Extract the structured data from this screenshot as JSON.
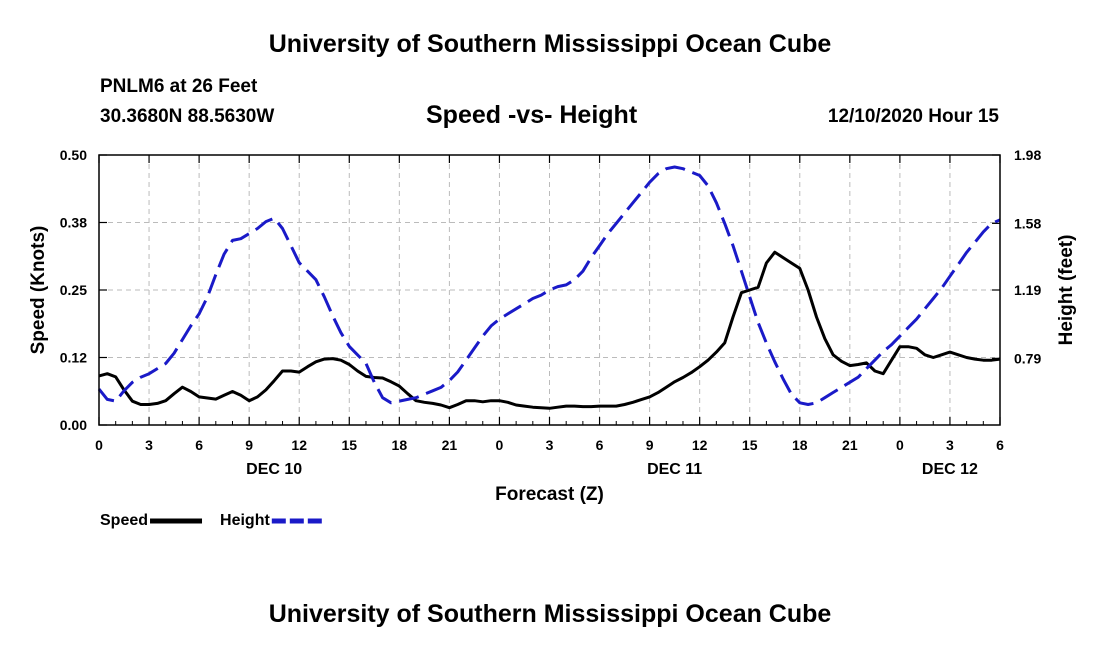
{
  "header": {
    "title": "University of Southern Mississippi Ocean Cube",
    "station": "PNLM6 at 26 Feet",
    "coords": "30.3680N 88.5630W",
    "datetime": "12/10/2020 Hour 15"
  },
  "footer": {
    "title": "University of Southern Mississippi Ocean Cube"
  },
  "chart_data": {
    "type": "line",
    "title": "Speed -vs- Height",
    "xlabel": "Forecast (Z)",
    "ylabel_left": "Speed (Knots)",
    "ylabel_right": "Height (feet)",
    "x_unit": "hours since 12/10 00Z",
    "xlim": [
      0,
      54
    ],
    "x_ticks": [
      0,
      3,
      6,
      9,
      12,
      15,
      18,
      21,
      24,
      27,
      30,
      33,
      36,
      39,
      42,
      45,
      48,
      51,
      54
    ],
    "x_tick_labels": [
      "0",
      "3",
      "6",
      "9",
      "12",
      "15",
      "18",
      "21",
      "0",
      "3",
      "6",
      "9",
      "12",
      "15",
      "18",
      "21",
      "0",
      "3",
      "6"
    ],
    "date_labels": [
      {
        "label": "DEC 10",
        "x": 10.5
      },
      {
        "label": "DEC 11",
        "x": 34.5
      },
      {
        "label": "DEC 12",
        "x": 51
      }
    ],
    "ylim_left": [
      0,
      0.5
    ],
    "y_ticks_left": [
      0,
      0.125,
      0.25,
      0.375,
      0.5
    ],
    "y_tick_labels_left": [
      "0.00",
      "0.12",
      "0.25",
      "0.38",
      "0.50"
    ],
    "ylim_right": [
      0.4,
      1.98
    ],
    "y_ticks_right": [
      0.79,
      1.19,
      1.58,
      1.98
    ],
    "y_tick_labels_right": [
      "0.79",
      "1.19",
      "1.58",
      "1.98"
    ],
    "grid": true,
    "series": [
      {
        "name": "Speed",
        "axis": "left",
        "color": "#000000",
        "dash": "solid",
        "x": [
          0,
          0.5,
          1,
          1.5,
          2,
          2.5,
          3,
          3.5,
          4,
          4.5,
          5,
          5.5,
          6,
          6.5,
          7,
          7.5,
          8,
          8.5,
          9,
          9.5,
          10,
          10.5,
          11,
          11.5,
          12,
          12.5,
          13,
          13.5,
          14,
          14.5,
          15,
          15.5,
          16,
          16.5,
          17,
          17.5,
          18,
          18.5,
          19,
          19.5,
          20,
          20.5,
          21,
          21.5,
          22,
          22.5,
          23,
          23.5,
          24,
          24.5,
          25,
          25.5,
          26,
          26.5,
          27,
          27.5,
          28,
          28.5,
          29,
          29.5,
          30,
          30.5,
          31,
          31.5,
          32,
          32.5,
          33,
          33.5,
          34,
          34.5,
          35,
          35.5,
          36,
          36.5,
          37,
          37.5,
          38,
          38.5,
          39,
          39.5,
          40,
          40.5,
          41,
          41.5,
          42,
          42.5,
          43,
          43.5,
          44,
          44.5,
          45,
          45.5,
          46,
          46.5,
          47,
          47.5,
          48,
          48.5,
          49,
          49.5,
          50,
          50.5,
          51,
          51.5,
          52,
          52.5,
          53,
          53.5,
          54
        ],
        "values": [
          0.091,
          0.095,
          0.089,
          0.065,
          0.044,
          0.038,
          0.038,
          0.04,
          0.045,
          0.058,
          0.07,
          0.062,
          0.052,
          0.05,
          0.048,
          0.055,
          0.062,
          0.055,
          0.045,
          0.052,
          0.065,
          0.082,
          0.1,
          0.1,
          0.098,
          0.108,
          0.117,
          0.122,
          0.123,
          0.12,
          0.112,
          0.1,
          0.09,
          0.088,
          0.087,
          0.08,
          0.072,
          0.058,
          0.045,
          0.042,
          0.04,
          0.037,
          0.032,
          0.038,
          0.045,
          0.045,
          0.043,
          0.045,
          0.045,
          0.042,
          0.037,
          0.035,
          0.033,
          0.032,
          0.031,
          0.033,
          0.035,
          0.035,
          0.034,
          0.034,
          0.035,
          0.035,
          0.035,
          0.038,
          0.042,
          0.047,
          0.052,
          0.06,
          0.07,
          0.08,
          0.088,
          0.097,
          0.108,
          0.12,
          0.135,
          0.152,
          0.2,
          0.245,
          0.25,
          0.255,
          0.3,
          0.32,
          0.31,
          0.3,
          0.29,
          0.25,
          0.2,
          0.16,
          0.13,
          0.118,
          0.11,
          0.112,
          0.115,
          0.1,
          0.095,
          0.12,
          0.145,
          0.145,
          0.142,
          0.13,
          0.125,
          0.13,
          0.135,
          0.13,
          0.125,
          0.122,
          0.12,
          0.12,
          0.122
        ]
      },
      {
        "name": "Height",
        "axis": "right",
        "color": "#1a1ac8",
        "dash": "dashed",
        "x": [
          0,
          0.5,
          1,
          1.5,
          2,
          2.5,
          3,
          3.5,
          4,
          4.5,
          5,
          5.5,
          6,
          6.5,
          7,
          7.5,
          8,
          8.5,
          9,
          9.5,
          10,
          10.5,
          11,
          11.5,
          12,
          12.5,
          13,
          13.5,
          14,
          14.5,
          15,
          15.5,
          16,
          16.5,
          17,
          17.5,
          18,
          18.5,
          19,
          19.5,
          20,
          20.5,
          21,
          21.5,
          22,
          22.5,
          23,
          23.5,
          24,
          24.5,
          25,
          25.5,
          26,
          26.5,
          27,
          27.5,
          28,
          28.5,
          29,
          29.5,
          30,
          30.5,
          31,
          31.5,
          32,
          32.5,
          33,
          33.5,
          34,
          34.5,
          35,
          35.5,
          36,
          36.5,
          37,
          37.5,
          38,
          38.5,
          39,
          39.5,
          40,
          40.5,
          41,
          41.5,
          42,
          42.5,
          43,
          43.5,
          44,
          44.5,
          45,
          45.5,
          46,
          46.5,
          47,
          47.5,
          48,
          48.5,
          49,
          49.5,
          50,
          50.5,
          51,
          51.5,
          52,
          52.5,
          53,
          53.5,
          54
        ],
        "values": [
          0.61,
          0.55,
          0.54,
          0.6,
          0.65,
          0.68,
          0.7,
          0.73,
          0.76,
          0.82,
          0.9,
          0.98,
          1.05,
          1.15,
          1.28,
          1.4,
          1.48,
          1.49,
          1.52,
          1.55,
          1.59,
          1.61,
          1.55,
          1.45,
          1.35,
          1.3,
          1.25,
          1.15,
          1.04,
          0.94,
          0.86,
          0.81,
          0.76,
          0.65,
          0.56,
          0.53,
          0.54,
          0.55,
          0.56,
          0.58,
          0.6,
          0.62,
          0.66,
          0.71,
          0.78,
          0.85,
          0.92,
          0.98,
          1.02,
          1.05,
          1.08,
          1.11,
          1.14,
          1.16,
          1.19,
          1.21,
          1.22,
          1.25,
          1.3,
          1.38,
          1.45,
          1.52,
          1.58,
          1.64,
          1.7,
          1.76,
          1.82,
          1.87,
          1.9,
          1.91,
          1.9,
          1.88,
          1.86,
          1.8,
          1.7,
          1.58,
          1.45,
          1.3,
          1.15,
          1.0,
          0.88,
          0.77,
          0.67,
          0.58,
          0.53,
          0.52,
          0.53,
          0.56,
          0.59,
          0.62,
          0.65,
          0.68,
          0.73,
          0.78,
          0.83,
          0.87,
          0.92,
          0.97,
          1.02,
          1.08,
          1.14,
          1.2,
          1.27,
          1.34,
          1.41,
          1.47,
          1.53,
          1.58,
          1.6
        ]
      }
    ],
    "legend": [
      {
        "label": "Speed",
        "series": "Speed"
      },
      {
        "label": "Height",
        "series": "Height"
      }
    ],
    "legend_position": "bottom-left"
  }
}
